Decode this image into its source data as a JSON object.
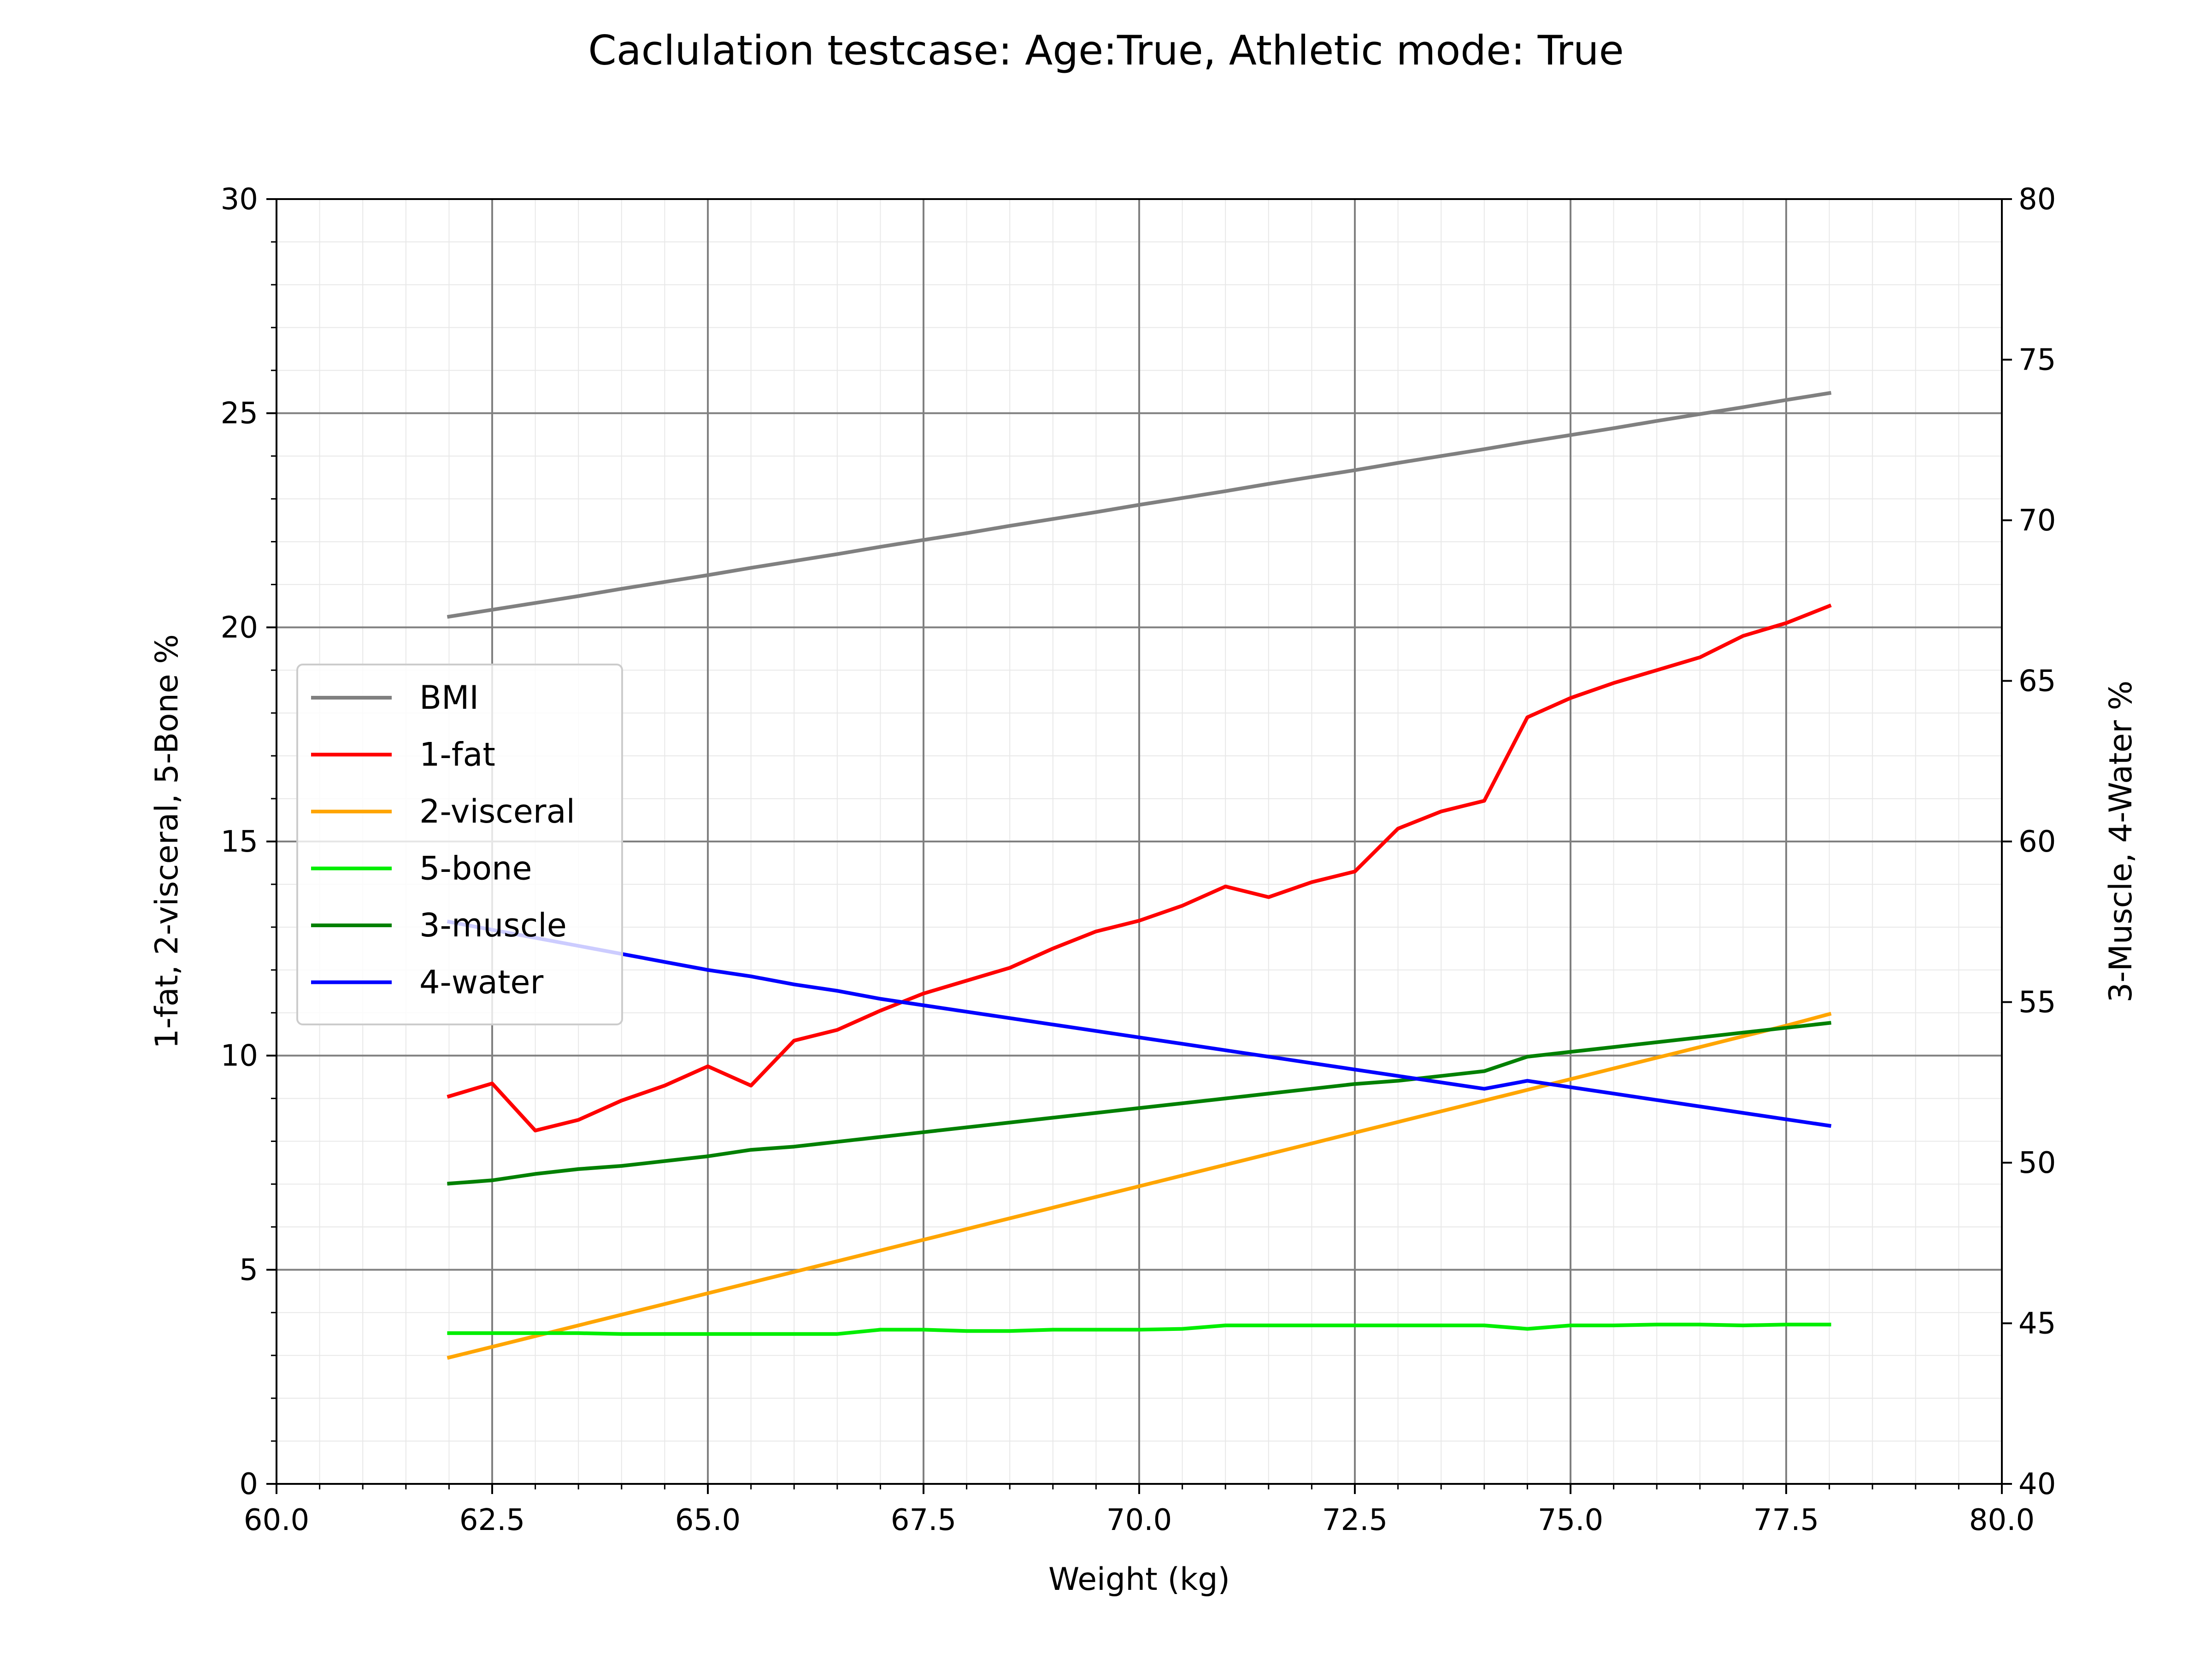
{
  "chart_data": {
    "type": "line",
    "title": "Caclulation testcase: Age:True, Athletic mode: True",
    "xlabel": "Weight (kg)",
    "ylabel_left": "1-fat, 2-visceral, 5-Bone %",
    "ylabel_right": "3-Muscle, 4-Water %",
    "xlim": [
      60,
      80
    ],
    "ylim_left": [
      0,
      30
    ],
    "ylim_right": [
      40,
      80
    ],
    "x_ticks": [
      "60.0",
      "62.5",
      "65.0",
      "67.5",
      "70.0",
      "72.5",
      "75.0",
      "77.5",
      "80.0"
    ],
    "y_left_ticks": [
      "0",
      "5",
      "10",
      "15",
      "20",
      "25",
      "30"
    ],
    "y_right_ticks": [
      "40",
      "45",
      "50",
      "55",
      "60",
      "65",
      "70",
      "75",
      "80"
    ],
    "grid": true,
    "legend_position": "center-left",
    "x": [
      62.0,
      62.5,
      63.0,
      63.5,
      64.0,
      64.5,
      65.0,
      65.5,
      66.0,
      66.5,
      67.0,
      67.5,
      68.0,
      68.5,
      69.0,
      69.5,
      70.0,
      70.5,
      71.0,
      71.5,
      72.0,
      72.5,
      73.0,
      73.5,
      74.0,
      74.5,
      75.0,
      75.5,
      76.0,
      76.5,
      77.0,
      77.5,
      78.0
    ],
    "series": [
      {
        "name": "BMI",
        "axis": "left",
        "color": "#808080",
        "values": [
          20.25,
          20.41,
          20.57,
          20.73,
          20.9,
          21.06,
          21.22,
          21.39,
          21.55,
          21.71,
          21.88,
          22.04,
          22.2,
          22.37,
          22.53,
          22.69,
          22.86,
          23.02,
          23.18,
          23.35,
          23.51,
          23.67,
          23.84,
          24.0,
          24.16,
          24.33,
          24.49,
          24.65,
          24.82,
          24.98,
          25.14,
          25.31,
          25.47
        ]
      },
      {
        "name": "1-fat",
        "axis": "left",
        "color": "#ff0000",
        "values": [
          9.05,
          9.35,
          8.25,
          8.5,
          8.95,
          9.3,
          9.75,
          9.3,
          10.35,
          10.6,
          11.05,
          11.45,
          11.75,
          12.05,
          12.5,
          12.9,
          13.15,
          13.5,
          13.95,
          13.7,
          14.05,
          14.3,
          15.3,
          15.7,
          15.95,
          17.9,
          18.35,
          18.7,
          19.0,
          19.3,
          19.8,
          20.1,
          20.5
        ]
      },
      {
        "name": "2-visceral",
        "axis": "left",
        "color": "#ffa500",
        "values": [
          2.95,
          3.2,
          3.45,
          3.7,
          3.95,
          4.2,
          4.45,
          4.7,
          4.95,
          5.2,
          5.45,
          5.7,
          5.95,
          6.2,
          6.45,
          6.7,
          6.95,
          7.2,
          7.45,
          7.7,
          7.95,
          8.2,
          8.45,
          8.7,
          8.95,
          9.2,
          9.45,
          9.7,
          9.95,
          10.2,
          10.45,
          10.7,
          10.97
        ]
      },
      {
        "name": "5-bone",
        "axis": "left",
        "color": "#00ee00",
        "values": [
          3.52,
          3.52,
          3.52,
          3.52,
          3.5,
          3.5,
          3.5,
          3.5,
          3.5,
          3.5,
          3.6,
          3.6,
          3.57,
          3.57,
          3.6,
          3.6,
          3.6,
          3.62,
          3.7,
          3.7,
          3.7,
          3.7,
          3.7,
          3.7,
          3.7,
          3.62,
          3.7,
          3.7,
          3.72,
          3.72,
          3.7,
          3.72,
          3.72
        ]
      },
      {
        "name": "3-muscle",
        "axis": "right",
        "color": "#008000",
        "values": [
          49.35,
          49.45,
          49.65,
          49.8,
          49.9,
          50.05,
          50.2,
          50.4,
          50.5,
          50.65,
          50.8,
          50.95,
          51.1,
          51.25,
          51.4,
          51.55,
          51.7,
          51.85,
          52.0,
          52.15,
          52.3,
          52.45,
          52.55,
          52.7,
          52.85,
          53.3,
          53.45,
          53.6,
          53.75,
          53.9,
          54.05,
          54.2,
          54.35
        ]
      },
      {
        "name": "4-water",
        "axis": "right",
        "color": "#0000ff",
        "values": [
          57.5,
          57.25,
          57.0,
          56.75,
          56.5,
          56.25,
          56.0,
          55.8,
          55.55,
          55.35,
          55.1,
          54.9,
          54.7,
          54.5,
          54.3,
          54.1,
          53.9,
          53.7,
          53.5,
          53.3,
          53.1,
          52.9,
          52.7,
          52.5,
          52.3,
          52.55,
          52.35,
          52.15,
          51.95,
          51.75,
          51.55,
          51.35,
          51.15
        ]
      }
    ]
  }
}
